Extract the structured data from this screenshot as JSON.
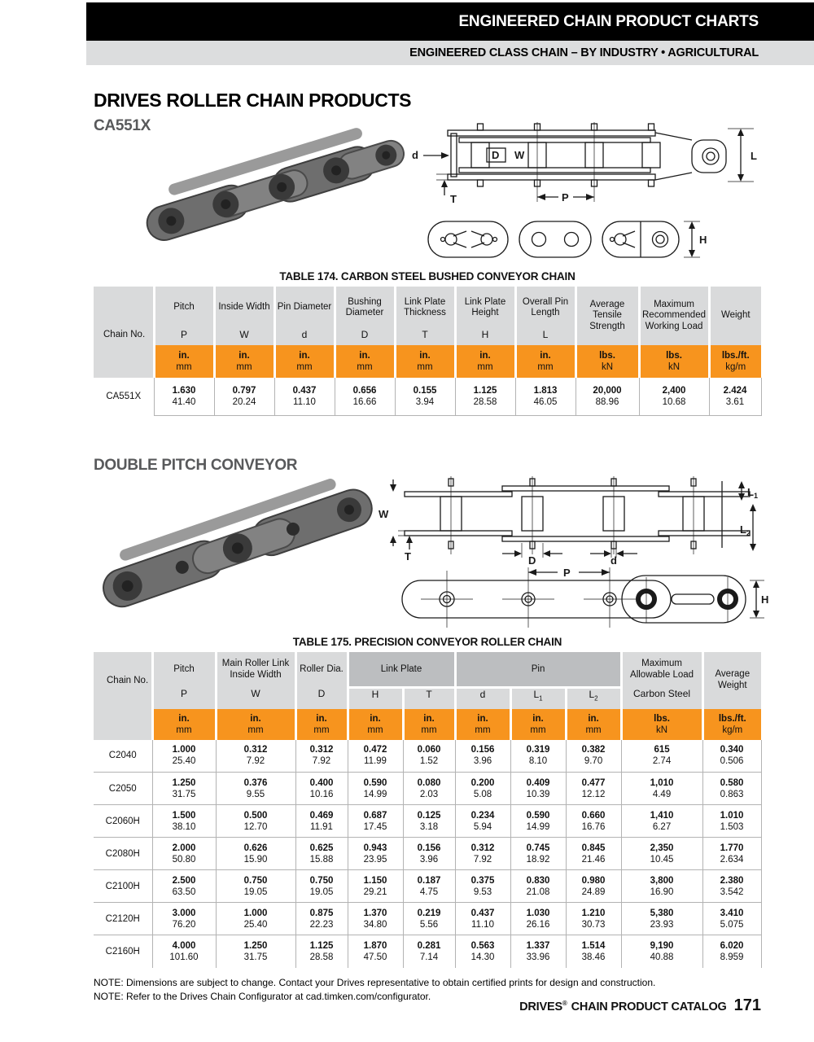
{
  "colors": {
    "accent_orange": "#F7941E",
    "header_gray": "#D9DADB",
    "group_gray": "#BCBEC0",
    "bar_black": "#000000",
    "bar_gray": "#DCDDDE",
    "heading_gray": "#58595B",
    "border_gray": "#B3B3B3"
  },
  "header": {
    "title": "ENGINEERED CHAIN PRODUCT CHARTS",
    "subtitle": "ENGINEERED CLASS CHAIN – BY INDUSTRY • AGRICULTURAL"
  },
  "sections": {
    "s1_title": "DRIVES ROLLER CHAIN PRODUCTS",
    "s1_sub": "CA551X",
    "s2_title": "DOUBLE PITCH CONVEYOR"
  },
  "diagram1": {
    "labels": {
      "d": "d",
      "D": "D",
      "W": "W",
      "L": "L",
      "T": "T",
      "P": "P",
      "H": "H"
    }
  },
  "diagram2": {
    "labels": {
      "W": "W",
      "T": "T",
      "D": "D",
      "d": "d",
      "P": "P",
      "H": "H",
      "L1": {
        "base": "L",
        "sub": "1"
      },
      "L2": {
        "base": "L",
        "sub": "2"
      }
    }
  },
  "table174": {
    "title": "TABLE 174. CARBON STEEL BUSHED CONVEYOR CHAIN",
    "chain_no_label": "Chain No.",
    "columns": [
      {
        "name": "Pitch",
        "symbol": "P"
      },
      {
        "name": "Inside Width",
        "symbol": "W"
      },
      {
        "name": "Pin Diameter",
        "symbol": "d"
      },
      {
        "name": "Bushing Diameter",
        "symbol": "D"
      },
      {
        "name": "Link Plate Thickness",
        "symbol": "T"
      },
      {
        "name": "Link Plate Height",
        "symbol": "H"
      },
      {
        "name": "Overall Pin Length",
        "symbol": "L"
      },
      {
        "name": "Average Tensile Strength",
        "symbol": ""
      },
      {
        "name": "Maximum Recommended Working Load",
        "symbol": ""
      },
      {
        "name": "Weight",
        "symbol": ""
      }
    ],
    "units": [
      [
        "in.",
        "mm"
      ],
      [
        "in.",
        "mm"
      ],
      [
        "in.",
        "mm"
      ],
      [
        "in.",
        "mm"
      ],
      [
        "in.",
        "mm"
      ],
      [
        "in.",
        "mm"
      ],
      [
        "in.",
        "mm"
      ],
      [
        "lbs.",
        "kN"
      ],
      [
        "lbs.",
        "kN"
      ],
      [
        "lbs./ft.",
        "kg/m"
      ]
    ],
    "rows": [
      {
        "chain": "CA551X",
        "values": [
          [
            "1.630",
            "41.40"
          ],
          [
            "0.797",
            "20.24"
          ],
          [
            "0.437",
            "11.10"
          ],
          [
            "0.656",
            "16.66"
          ],
          [
            "0.155",
            "3.94"
          ],
          [
            "1.125",
            "28.58"
          ],
          [
            "1.813",
            "46.05"
          ],
          [
            "20,000",
            "88.96"
          ],
          [
            "2,400",
            "10.68"
          ],
          [
            "2.424",
            "3.61"
          ]
        ]
      }
    ]
  },
  "table175": {
    "title": "TABLE 175. PRECISION CONVEYOR ROLLER CHAIN",
    "chain_no_label": "Chain No.",
    "header": [
      {
        "name": "Pitch",
        "symbol": {
          "base": "P",
          "sub": ""
        }
      },
      {
        "name": "Main Roller Link Inside Width",
        "symbol": {
          "base": "W",
          "sub": ""
        }
      },
      {
        "name": "Roller Dia.",
        "symbol": {
          "base": "D",
          "sub": ""
        }
      },
      {
        "group": "Link Plate",
        "symbols": [
          {
            "base": "H",
            "sub": ""
          },
          {
            "base": "T",
            "sub": ""
          }
        ]
      },
      {
        "group": "Pin",
        "symbols": [
          {
            "base": "d",
            "sub": ""
          },
          {
            "base": "L",
            "sub": "1"
          },
          {
            "base": "L",
            "sub": "2"
          }
        ]
      },
      {
        "name": "Maximum Allowable Load",
        "symbol": {
          "base": "Carbon Steel",
          "sub": ""
        }
      },
      {
        "name": "Average Weight",
        "symbol": null
      }
    ],
    "units": [
      [
        "in.",
        "mm"
      ],
      [
        "in.",
        "mm"
      ],
      [
        "in.",
        "mm"
      ],
      [
        "in.",
        "mm"
      ],
      [
        "in.",
        "mm"
      ],
      [
        "in.",
        "mm"
      ],
      [
        "in.",
        "mm"
      ],
      [
        "in.",
        "mm"
      ],
      [
        "lbs.",
        "kN"
      ],
      [
        "lbs./ft.",
        "kg/m"
      ]
    ],
    "rows": [
      {
        "chain": "C2040",
        "values": [
          [
            "1.000",
            "25.40"
          ],
          [
            "0.312",
            "7.92"
          ],
          [
            "0.312",
            "7.92"
          ],
          [
            "0.472",
            "11.99"
          ],
          [
            "0.060",
            "1.52"
          ],
          [
            "0.156",
            "3.96"
          ],
          [
            "0.319",
            "8.10"
          ],
          [
            "0.382",
            "9.70"
          ],
          [
            "615",
            "2.74"
          ],
          [
            "0.340",
            "0.506"
          ]
        ]
      },
      {
        "chain": "C2050",
        "values": [
          [
            "1.250",
            "31.75"
          ],
          [
            "0.376",
            "9.55"
          ],
          [
            "0.400",
            "10.16"
          ],
          [
            "0.590",
            "14.99"
          ],
          [
            "0.080",
            "2.03"
          ],
          [
            "0.200",
            "5.08"
          ],
          [
            "0.409",
            "10.39"
          ],
          [
            "0.477",
            "12.12"
          ],
          [
            "1,010",
            "4.49"
          ],
          [
            "0.580",
            "0.863"
          ]
        ]
      },
      {
        "chain": "C2060H",
        "values": [
          [
            "1.500",
            "38.10"
          ],
          [
            "0.500",
            "12.70"
          ],
          [
            "0.469",
            "11.91"
          ],
          [
            "0.687",
            "17.45"
          ],
          [
            "0.125",
            "3.18"
          ],
          [
            "0.234",
            "5.94"
          ],
          [
            "0.590",
            "14.99"
          ],
          [
            "0.660",
            "16.76"
          ],
          [
            "1,410",
            "6.27"
          ],
          [
            "1.010",
            "1.503"
          ]
        ]
      },
      {
        "chain": "C2080H",
        "values": [
          [
            "2.000",
            "50.80"
          ],
          [
            "0.626",
            "15.90"
          ],
          [
            "0.625",
            "15.88"
          ],
          [
            "0.943",
            "23.95"
          ],
          [
            "0.156",
            "3.96"
          ],
          [
            "0.312",
            "7.92"
          ],
          [
            "0.745",
            "18.92"
          ],
          [
            "0.845",
            "21.46"
          ],
          [
            "2,350",
            "10.45"
          ],
          [
            "1.770",
            "2.634"
          ]
        ]
      },
      {
        "chain": "C2100H",
        "values": [
          [
            "2.500",
            "63.50"
          ],
          [
            "0.750",
            "19.05"
          ],
          [
            "0.750",
            "19.05"
          ],
          [
            "1.150",
            "29.21"
          ],
          [
            "0.187",
            "4.75"
          ],
          [
            "0.375",
            "9.53"
          ],
          [
            "0.830",
            "21.08"
          ],
          [
            "0.980",
            "24.89"
          ],
          [
            "3,800",
            "16.90"
          ],
          [
            "2.380",
            "3.542"
          ]
        ]
      },
      {
        "chain": "C2120H",
        "values": [
          [
            "3.000",
            "76.20"
          ],
          [
            "1.000",
            "25.40"
          ],
          [
            "0.875",
            "22.23"
          ],
          [
            "1.370",
            "34.80"
          ],
          [
            "0.219",
            "5.56"
          ],
          [
            "0.437",
            "11.10"
          ],
          [
            "1.030",
            "26.16"
          ],
          [
            "1.210",
            "30.73"
          ],
          [
            "5,380",
            "23.93"
          ],
          [
            "3.410",
            "5.075"
          ]
        ]
      },
      {
        "chain": "C2160H",
        "values": [
          [
            "4.000",
            "101.60"
          ],
          [
            "1.250",
            "31.75"
          ],
          [
            "1.125",
            "28.58"
          ],
          [
            "1.870",
            "47.50"
          ],
          [
            "0.281",
            "7.14"
          ],
          [
            "0.563",
            "14.30"
          ],
          [
            "1.337",
            "33.96"
          ],
          [
            "1.514",
            "38.46"
          ],
          [
            "9,190",
            "40.88"
          ],
          [
            "6.020",
            "8.959"
          ]
        ]
      }
    ]
  },
  "notes": [
    "NOTE: Dimensions are subject to change. Contact your Drives representative to obtain certified prints for design and construction.",
    "NOTE: Refer to the Drives Chain Configurator at cad.timken.com/configurator."
  ],
  "footer": {
    "brand": "DRIVES",
    "reg": "®",
    "rest": "CHAIN PRODUCT CATALOG",
    "page": "171"
  }
}
